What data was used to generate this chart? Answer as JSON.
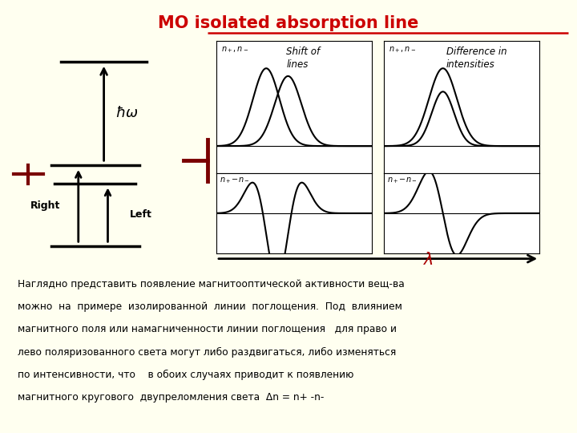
{
  "title": "MO isolated absorption line",
  "title_color": "#cc0000",
  "bg_color": "#fffff0",
  "panel_bg": "#ffffff",
  "text_color": "#000000",
  "body_text_lines": [
    "Наглядно представить появление магнитооптической активности вещ-ва",
    "можно  на  примере  изолированной  линии  поглощения.  Под  влиянием",
    "магнитного поля или намагниченности линии поглощения   для право и",
    "лево поляризованного света могут либо раздвигаться, либо изменяться",
    "по интенсивности, что    в обоих случаях приводит к появлению",
    "магнитного кругового  двупреломления света  Δn = n+ -n-"
  ],
  "label_shift": "Shift of\nlines",
  "label_diff": "Difference in\nintensities",
  "label_lambda": "λ",
  "label_right": "Right",
  "label_left": "Left",
  "dark_red": "#7a0000",
  "arrow_red": "#aa0000"
}
